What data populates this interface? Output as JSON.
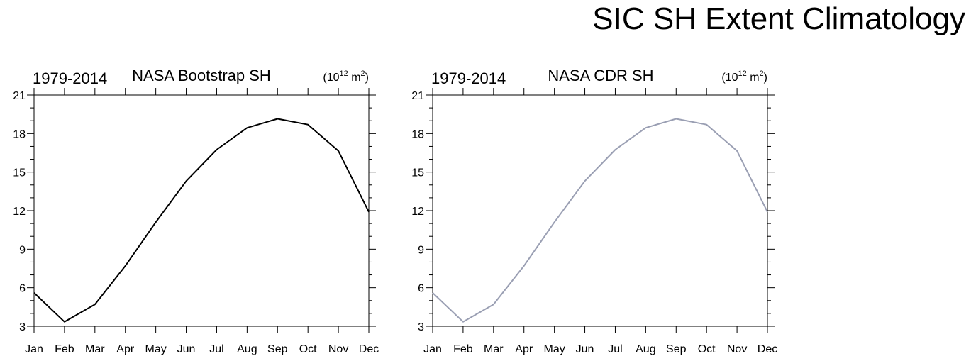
{
  "main_title": "SIC SH Extent Climatology",
  "chart_data": [
    {
      "type": "line",
      "left_title": "1979-2014",
      "center_title": "NASA Bootstrap SH",
      "units_base": "(10",
      "units_exp": "12",
      "units_mid": " m",
      "units_exp2": "2",
      "units_close": ")",
      "categories": [
        "Jan",
        "Feb",
        "Mar",
        "Apr",
        "May",
        "Jun",
        "Jul",
        "Aug",
        "Sep",
        "Oct",
        "Nov",
        "Dec"
      ],
      "series": [
        {
          "color": "#000000",
          "values": [
            5.6,
            3.35,
            4.7,
            7.7,
            11.1,
            14.3,
            16.75,
            18.45,
            19.15,
            18.7,
            16.65,
            11.9
          ]
        }
      ],
      "ylim": [
        3,
        21
      ],
      "yticks": [
        3,
        6,
        9,
        12,
        15,
        18,
        21
      ],
      "grid": false
    },
    {
      "type": "line",
      "left_title": "1979-2014",
      "center_title": "NASA CDR SH",
      "units_base": "(10",
      "units_exp": "12",
      "units_mid": " m",
      "units_exp2": "2",
      "units_close": ")",
      "categories": [
        "Jan",
        "Feb",
        "Mar",
        "Apr",
        "May",
        "Jun",
        "Jul",
        "Aug",
        "Sep",
        "Oct",
        "Nov",
        "Dec"
      ],
      "series": [
        {
          "color": "#9a9fb3",
          "values": [
            5.6,
            3.35,
            4.7,
            7.7,
            11.1,
            14.3,
            16.75,
            18.45,
            19.15,
            18.7,
            16.65,
            11.9
          ]
        }
      ],
      "ylim": [
        3,
        21
      ],
      "yticks": [
        3,
        6,
        9,
        12,
        15,
        18,
        21
      ],
      "grid": false
    }
  ]
}
